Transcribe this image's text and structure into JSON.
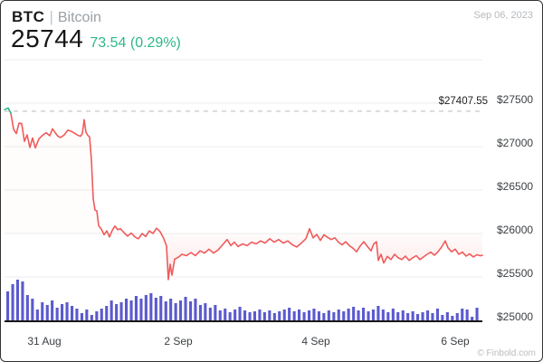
{
  "header": {
    "symbol": "BTC",
    "separator": "|",
    "name": "Bitcoin",
    "date": "Sep 06, 2023",
    "price": "25744",
    "change": "73.54 (0.29%)"
  },
  "watermark": "© Finbold.com",
  "colors": {
    "line_red": "#ef5b5b",
    "line_green": "#2bb886",
    "change_green": "#2bb886",
    "volume": "#5b5ace",
    "grid": "#ececec",
    "dashed": "#c9c9c9",
    "baseline": "#161616",
    "fill_red": "240,82,82"
  },
  "chart_data": {
    "type": "line",
    "title": "BTC / Bitcoin price with volume",
    "x_ticks": [
      "31 Aug",
      "2 Sep",
      "4 Sep",
      "6 Sep"
    ],
    "y_ticks": [
      "$27500",
      "$27000",
      "$26500",
      "$26000",
      "$25500",
      "$25000"
    ],
    "y_tick_values": [
      27500,
      27000,
      26500,
      26000,
      25500,
      25000
    ],
    "ylim": [
      25000,
      28000
    ],
    "grid_values": [
      28000,
      27500,
      27000,
      26500,
      26000,
      25500
    ],
    "reference_line": {
      "label": "$27407.55",
      "value": 27407.55
    },
    "last_price": 25744,
    "legend_position": "none",
    "series": [
      {
        "name": "BTC price",
        "points": [
          [
            4,
            27425
          ],
          [
            8,
            27445
          ],
          [
            11,
            27385
          ],
          [
            14,
            27200
          ],
          [
            17,
            27150
          ],
          [
            20,
            27270
          ],
          [
            23,
            27265
          ],
          [
            26,
            27060
          ],
          [
            29,
            27135
          ],
          [
            32,
            26990
          ],
          [
            35,
            27100
          ],
          [
            38,
            26985
          ],
          [
            42,
            27090
          ],
          [
            46,
            27130
          ],
          [
            50,
            27160
          ],
          [
            54,
            27125
          ],
          [
            57,
            27205
          ],
          [
            60,
            27160
          ],
          [
            63,
            27120
          ],
          [
            66,
            27105
          ],
          [
            70,
            27135
          ],
          [
            74,
            27190
          ],
          [
            78,
            27175
          ],
          [
            82,
            27150
          ],
          [
            85,
            27130
          ],
          [
            88,
            27120
          ],
          [
            90,
            27150
          ],
          [
            92,
            27310
          ],
          [
            94,
            27165
          ],
          [
            96,
            27130
          ],
          [
            98,
            27110
          ],
          [
            100,
            26850
          ],
          [
            102,
            26400
          ],
          [
            104,
            26270
          ],
          [
            106,
            26260
          ],
          [
            108,
            26090
          ],
          [
            111,
            26050
          ],
          [
            114,
            25985
          ],
          [
            117,
            26030
          ],
          [
            120,
            25960
          ],
          [
            123,
            26035
          ],
          [
            126,
            26085
          ],
          [
            129,
            26045
          ],
          [
            132,
            26055
          ],
          [
            136,
            26010
          ],
          [
            140,
            25970
          ],
          [
            144,
            26005
          ],
          [
            148,
            25960
          ],
          [
            152,
            25940
          ],
          [
            156,
            26000
          ],
          [
            160,
            25965
          ],
          [
            164,
            26030
          ],
          [
            168,
            26000
          ],
          [
            172,
            26060
          ],
          [
            176,
            26020
          ],
          [
            180,
            25940
          ],
          [
            183,
            25855
          ],
          [
            185,
            25470
          ],
          [
            187,
            25645
          ],
          [
            189,
            25520
          ],
          [
            192,
            25705
          ],
          [
            196,
            25725
          ],
          [
            200,
            25760
          ],
          [
            205,
            25745
          ],
          [
            210,
            25780
          ],
          [
            215,
            25745
          ],
          [
            220,
            25800
          ],
          [
            225,
            25775
          ],
          [
            230,
            25820
          ],
          [
            235,
            25775
          ],
          [
            240,
            25810
          ],
          [
            245,
            25870
          ],
          [
            250,
            25930
          ],
          [
            254,
            25860
          ],
          [
            258,
            25900
          ],
          [
            262,
            25850
          ],
          [
            267,
            25880
          ],
          [
            272,
            25860
          ],
          [
            277,
            25900
          ],
          [
            282,
            25880
          ],
          [
            287,
            25915
          ],
          [
            292,
            25890
          ],
          [
            297,
            25940
          ],
          [
            302,
            25900
          ],
          [
            307,
            25930
          ],
          [
            312,
            25890
          ],
          [
            317,
            25915
          ],
          [
            322,
            25870
          ],
          [
            327,
            25845
          ],
          [
            332,
            25890
          ],
          [
            337,
            25940
          ],
          [
            341,
            26055
          ],
          [
            345,
            25950
          ],
          [
            349,
            25990
          ],
          [
            353,
            25920
          ],
          [
            357,
            25985
          ],
          [
            361,
            25955
          ],
          [
            365,
            25930
          ],
          [
            369,
            25950
          ],
          [
            373,
            25900
          ],
          [
            377,
            25870
          ],
          [
            381,
            25905
          ],
          [
            385,
            25860
          ],
          [
            389,
            25830
          ],
          [
            393,
            25790
          ],
          [
            397,
            25855
          ],
          [
            401,
            25905
          ],
          [
            405,
            25850
          ],
          [
            409,
            25800
          ],
          [
            412,
            25880
          ],
          [
            415,
            25905
          ],
          [
            417,
            25690
          ],
          [
            420,
            25760
          ],
          [
            423,
            25660
          ],
          [
            427,
            25735
          ],
          [
            431,
            25700
          ],
          [
            435,
            25760
          ],
          [
            439,
            25720
          ],
          [
            443,
            25700
          ],
          [
            447,
            25740
          ],
          [
            451,
            25690
          ],
          [
            455,
            25720
          ],
          [
            459,
            25745
          ],
          [
            463,
            25700
          ],
          [
            467,
            25730
          ],
          [
            471,
            25760
          ],
          [
            475,
            25785
          ],
          [
            479,
            25750
          ],
          [
            483,
            25790
          ],
          [
            487,
            25845
          ],
          [
            491,
            25915
          ],
          [
            494,
            25835
          ],
          [
            498,
            25790
          ],
          [
            502,
            25820
          ],
          [
            506,
            25760
          ],
          [
            510,
            25785
          ],
          [
            514,
            25740
          ],
          [
            518,
            25765
          ],
          [
            522,
            25730
          ],
          [
            526,
            25755
          ],
          [
            530,
            25744
          ],
          [
            532,
            25750
          ]
        ]
      }
    ],
    "volume": [
      32,
      40,
      45,
      43,
      28,
      24,
      12,
      20,
      17,
      22,
      14,
      18,
      20,
      16,
      13,
      8,
      12,
      6,
      10,
      13,
      16,
      22,
      18,
      20,
      24,
      22,
      27,
      24,
      28,
      30,
      25,
      27,
      21,
      24,
      19,
      22,
      26,
      21,
      24,
      17,
      19,
      14,
      17,
      11,
      13,
      9,
      12,
      15,
      11,
      9,
      10,
      12,
      9,
      11,
      8,
      10,
      12,
      14,
      10,
      12,
      9,
      11,
      13,
      10,
      8,
      11,
      9,
      12,
      10,
      13,
      15,
      11,
      14,
      10,
      12,
      16,
      12,
      9,
      13,
      9,
      11,
      8,
      10,
      7,
      9,
      11,
      8,
      13,
      6,
      9,
      5,
      8,
      13,
      12,
      4,
      14
    ]
  }
}
